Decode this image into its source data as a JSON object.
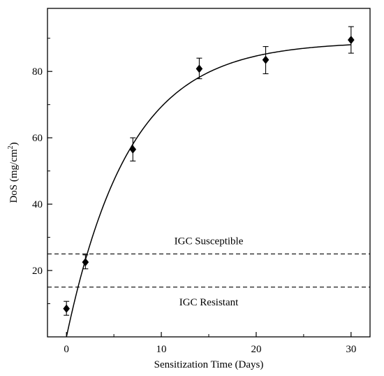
{
  "chart_data": {
    "type": "scatter",
    "xlabel": "Sensitization Time (Days)",
    "ylabel_main": "DoS (mg/cm",
    "ylabel_sup": "2",
    "ylabel_close": ")",
    "xlim": [
      -2,
      32
    ],
    "ylim": [
      0,
      99
    ],
    "xticks": [
      0,
      10,
      20,
      30
    ],
    "yticks": [
      20,
      40,
      60,
      80
    ],
    "grid": false,
    "series": [
      {
        "marker": "diamond",
        "x": [
          0,
          2,
          7,
          14,
          21,
          30
        ],
        "y": [
          8.5,
          22.5,
          56.5,
          80.8,
          83.5,
          89.5
        ],
        "err_low": [
          2.0,
          2.0,
          3.5,
          3.0,
          4.2,
          4.0
        ],
        "err_high": [
          2.2,
          2.2,
          3.5,
          3.2,
          4.0,
          4.0
        ]
      }
    ],
    "fit_curve": {
      "x_start": 0,
      "x_end": 30,
      "a": 89.0,
      "b": 0.151
    },
    "reference_lines": [
      {
        "y": 25,
        "style": "dashed",
        "label": "IGC Susceptible",
        "label_position": "above"
      },
      {
        "y": 15,
        "style": "dashed",
        "label": "IGC Resistant",
        "label_position": "below"
      }
    ]
  }
}
